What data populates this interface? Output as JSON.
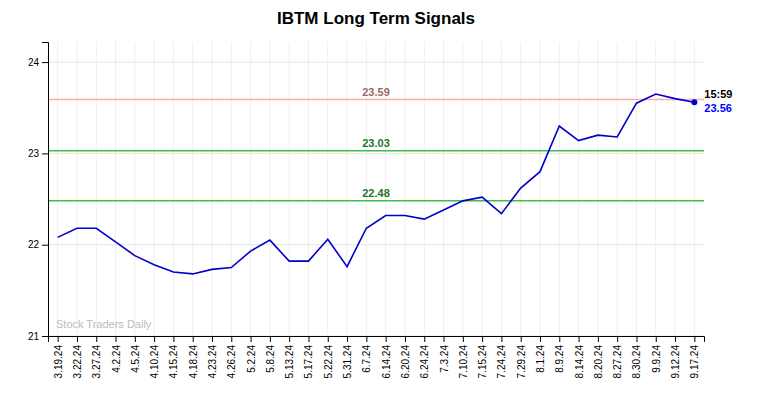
{
  "chart_data": {
    "type": "line",
    "title": "IBTM Long Term Signals",
    "categories": [
      "3.19.24",
      "3.22.24",
      "3.27.24",
      "4.2.24",
      "4.5.24",
      "4.10.24",
      "4.15.24",
      "4.18.24",
      "4.23.24",
      "4.26.24",
      "5.2.24",
      "5.8.24",
      "5.13.24",
      "5.17.24",
      "5.22.24",
      "5.31.24",
      "6.7.24",
      "6.14.24",
      "6.20.24",
      "6.24.24",
      "7.3.24",
      "7.10.24",
      "7.15.24",
      "7.24.24",
      "7.29.24",
      "8.1.24",
      "8.9.24",
      "8.14.24",
      "8.20.24",
      "8.27.24",
      "8.30.24",
      "9.9.24",
      "9.12.24",
      "9.17.24"
    ],
    "series": [
      {
        "color": "#0000cc",
        "values": [
          22.08,
          22.18,
          22.18,
          22.03,
          21.88,
          21.78,
          21.7,
          21.68,
          21.73,
          21.75,
          21.93,
          22.05,
          21.82,
          21.82,
          22.06,
          21.76,
          22.18,
          22.32,
          22.32,
          22.28,
          22.38,
          22.48,
          22.52,
          22.34,
          22.62,
          22.8,
          23.3,
          23.14,
          23.2,
          23.18,
          23.55,
          23.65,
          23.6,
          23.56
        ]
      }
    ],
    "reference_lines": [
      {
        "value": 23.59,
        "label": "23.59",
        "color": "#ffaaaa"
      },
      {
        "value": 23.03,
        "label": "23.03",
        "color": "#44bb44"
      },
      {
        "value": 22.48,
        "label": "22.48",
        "color": "#44bb44"
      }
    ],
    "annotations": [
      {
        "text": "15:59",
        "anchor": "last"
      },
      {
        "text": "23.56",
        "anchor": "last",
        "color": "#0000ff"
      },
      {
        "text": "Stock Traders Daily",
        "anchor": "bottom-left",
        "color": "#bbbbbb"
      }
    ],
    "ylim": [
      21.0,
      24.22
    ],
    "yticks": [
      21,
      22,
      23,
      24
    ],
    "grid": true
  }
}
